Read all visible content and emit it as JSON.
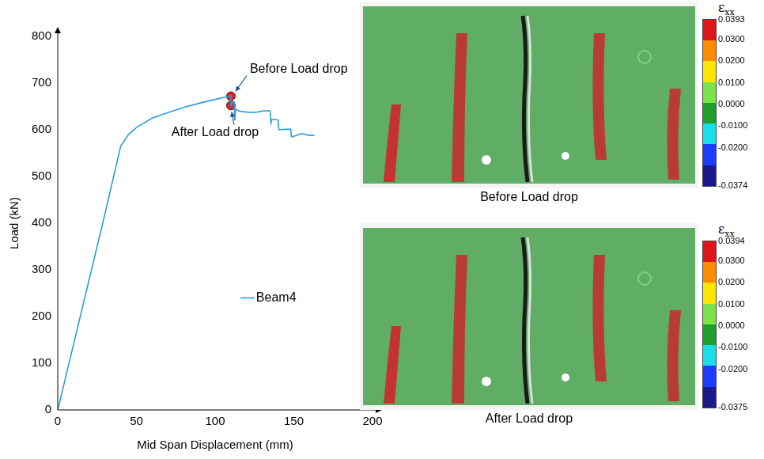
{
  "chart_data": {
    "type": "line",
    "x_label": "Mid Span Displacement (mm)",
    "y_label": "Load (kN)",
    "series": [
      {
        "name": "Beam4",
        "color": "#2b9fd8",
        "x": [
          0,
          10,
          20,
          30,
          40,
          45,
          50,
          60,
          70,
          80,
          90,
          100,
          110,
          110,
          111,
          112,
          112.5,
          113,
          115,
          120,
          125,
          130,
          134,
          135,
          135.5,
          136,
          138,
          140,
          140.5,
          145,
          148,
          148.5,
          150,
          155,
          160,
          163
        ],
        "values": [
          0,
          140,
          280,
          420,
          565,
          590,
          605,
          625,
          637,
          648,
          657,
          665,
          673,
          652,
          658,
          660,
          620,
          645,
          640,
          638,
          637,
          640,
          641,
          640,
          615,
          622,
          622,
          621,
          600,
          601,
          601,
          585,
          586,
          592,
          588,
          588
        ]
      }
    ],
    "xlim": [
      0,
      200
    ],
    "xticks": [
      0,
      50,
      100,
      150,
      200
    ],
    "ylim": [
      0,
      800
    ],
    "yticks": [
      0,
      100,
      200,
      300,
      400,
      500,
      600,
      700,
      800
    ],
    "grid": false,
    "legend": "center",
    "annotations": [
      {
        "text": "Before Load drop",
        "x": 110,
        "y": 672,
        "color": "#e0201e"
      },
      {
        "text": "After Load drop",
        "x": 110,
        "y": 652,
        "color": "#e0201e"
      }
    ]
  },
  "images": [
    {
      "caption": "Before Load drop",
      "colorbar": {
        "title": "ε",
        "title_subscript": "xx",
        "range": [
          -0.0374,
          0.0393
        ],
        "ticks": [
          0.0393,
          {
            "value": 0.03,
            "label": "0.0300"
          },
          {
            "value": 0.02,
            "label": "0.0200"
          },
          {
            "value": 0.01,
            "label": "0.0100"
          },
          {
            "value": 0,
            "label": "0.0000"
          },
          {
            "value": -0.01,
            "label": "-0.0100"
          },
          {
            "value": -0.02,
            "label": "-0.0200"
          },
          -0.0374
        ]
      }
    },
    {
      "caption": "After Load drop",
      "colorbar": {
        "title": "ε",
        "title_subscript": "xx",
        "range": [
          -0.0375,
          0.0394
        ],
        "ticks": [
          0.0394,
          {
            "value": 0.03,
            "label": "0.0300"
          },
          {
            "value": 0.02,
            "label": "0.0200"
          },
          {
            "value": 0.01,
            "label": "0.0100"
          },
          {
            "value": 0,
            "label": "0.0000"
          },
          {
            "value": -0.01,
            "label": "-0.0100"
          },
          {
            "value": -0.02,
            "label": "-0.0200"
          },
          -0.0375
        ]
      }
    }
  ]
}
